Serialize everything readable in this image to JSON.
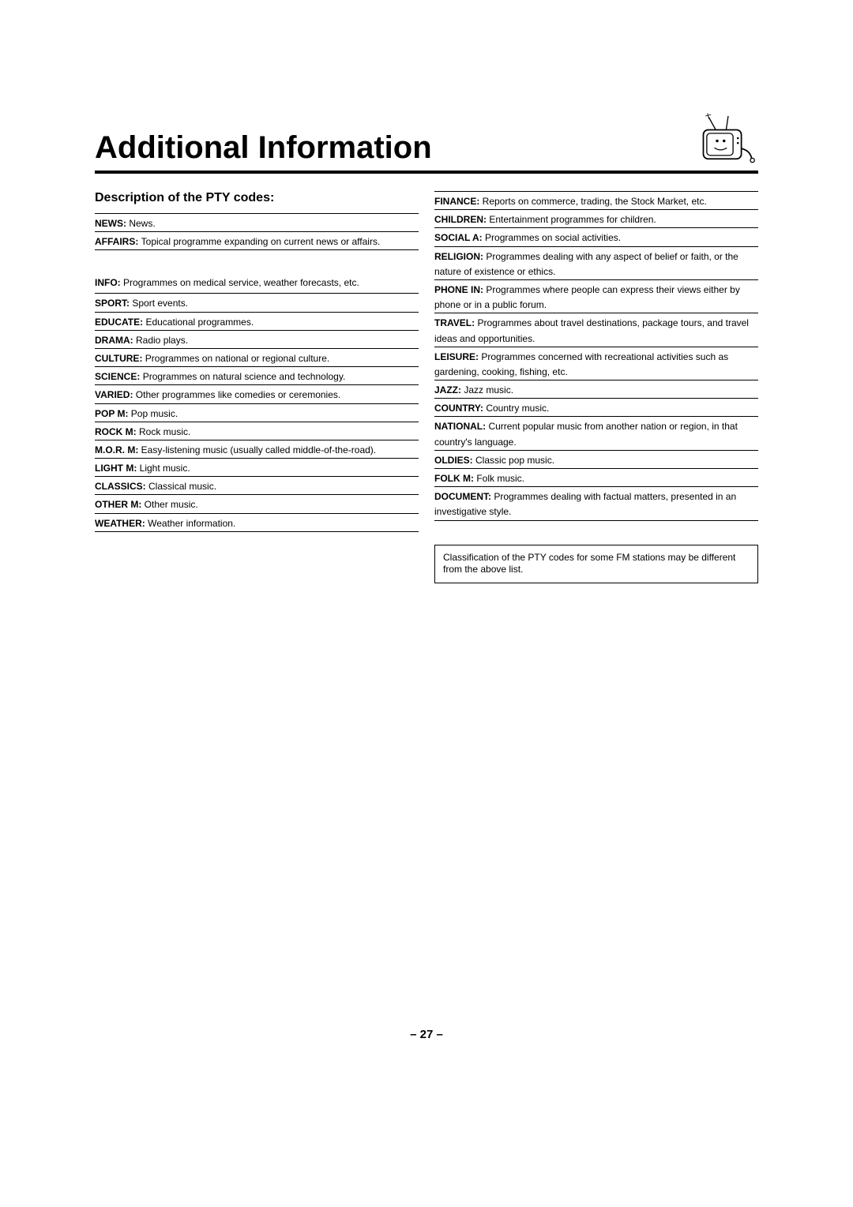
{
  "title": "Additional Information",
  "subtitle": "Description of the PTY codes:",
  "page_number": "– 27 –",
  "note": "Classification of the PTY codes for some FM stations may be different from the above list.",
  "left_intro": {
    "code": "NEWS: ",
    "desc": "News."
  },
  "left_affairs": {
    "code": "AFFAIRS: ",
    "desc": "Topical programme expanding on current news or affairs."
  },
  "left_info": {
    "code": "INFO: ",
    "desc": "Programmes on medical service, weather forecasts, etc."
  },
  "left_entries": [
    {
      "code": "SPORT: ",
      "desc": "Sport events."
    },
    {
      "code": "EDUCATE: ",
      "desc": "Educational programmes."
    },
    {
      "code": "DRAMA: ",
      "desc": "Radio plays."
    },
    {
      "code": "CULTURE: ",
      "desc": "Programmes on national or regional culture."
    },
    {
      "code": "SCIENCE: ",
      "desc": "Programmes on natural science and technology."
    },
    {
      "code": "VARIED: ",
      "desc": "Other programmes like comedies or ceremonies."
    },
    {
      "code": "POP M: ",
      "desc": "Pop music."
    },
    {
      "code": "ROCK M: ",
      "desc": "Rock music."
    },
    {
      "code": "M.O.R. M: ",
      "desc": "Easy-listening music (usually called middle-of-the-road)."
    },
    {
      "code": "LIGHT M: ",
      "desc": "Light music."
    },
    {
      "code": "CLASSICS: ",
      "desc": "Classical music."
    },
    {
      "code": "OTHER M: ",
      "desc": "Other music."
    },
    {
      "code": "WEATHER: ",
      "desc": "Weather information."
    }
  ],
  "right_entries": [
    {
      "code": "FINANCE: ",
      "desc": "Reports on commerce, trading, the Stock Market, etc."
    },
    {
      "code": "CHILDREN: ",
      "desc": "Entertainment programmes for children."
    },
    {
      "code": "SOCIAL A: ",
      "desc": "Programmes on social activities."
    },
    {
      "code": "RELIGION: ",
      "desc": "Programmes dealing with any aspect of belief or faith, or the nature of existence or ethics."
    },
    {
      "code": "PHONE IN: ",
      "desc": "Programmes where people can express their views either by phone or in a public forum."
    },
    {
      "code": "TRAVEL: ",
      "desc": "Programmes about travel destinations, package tours, and travel ideas and opportunities."
    },
    {
      "code": "LEISURE: ",
      "desc": "Programmes concerned with recreational activities such as gardening, cooking, fishing, etc."
    },
    {
      "code": "JAZZ: ",
      "desc": "Jazz music."
    },
    {
      "code": "COUNTRY: ",
      "desc": "Country music."
    },
    {
      "code": "NATIONAL: ",
      "desc": "Current popular music from another nation or region, in that country's language."
    },
    {
      "code": "OLDIES: ",
      "desc": "Classic pop music."
    },
    {
      "code": "FOLK M: ",
      "desc": "Folk music."
    },
    {
      "code": "DOCUMENT: ",
      "desc": "Programmes dealing with factual matters, presented in an investigative style."
    }
  ],
  "colors": {
    "text": "#000000",
    "background": "#ffffff",
    "rule": "#000000"
  },
  "typography": {
    "title_size_pt": 30,
    "body_size_pt": 9,
    "subtitle_size_pt": 12
  }
}
